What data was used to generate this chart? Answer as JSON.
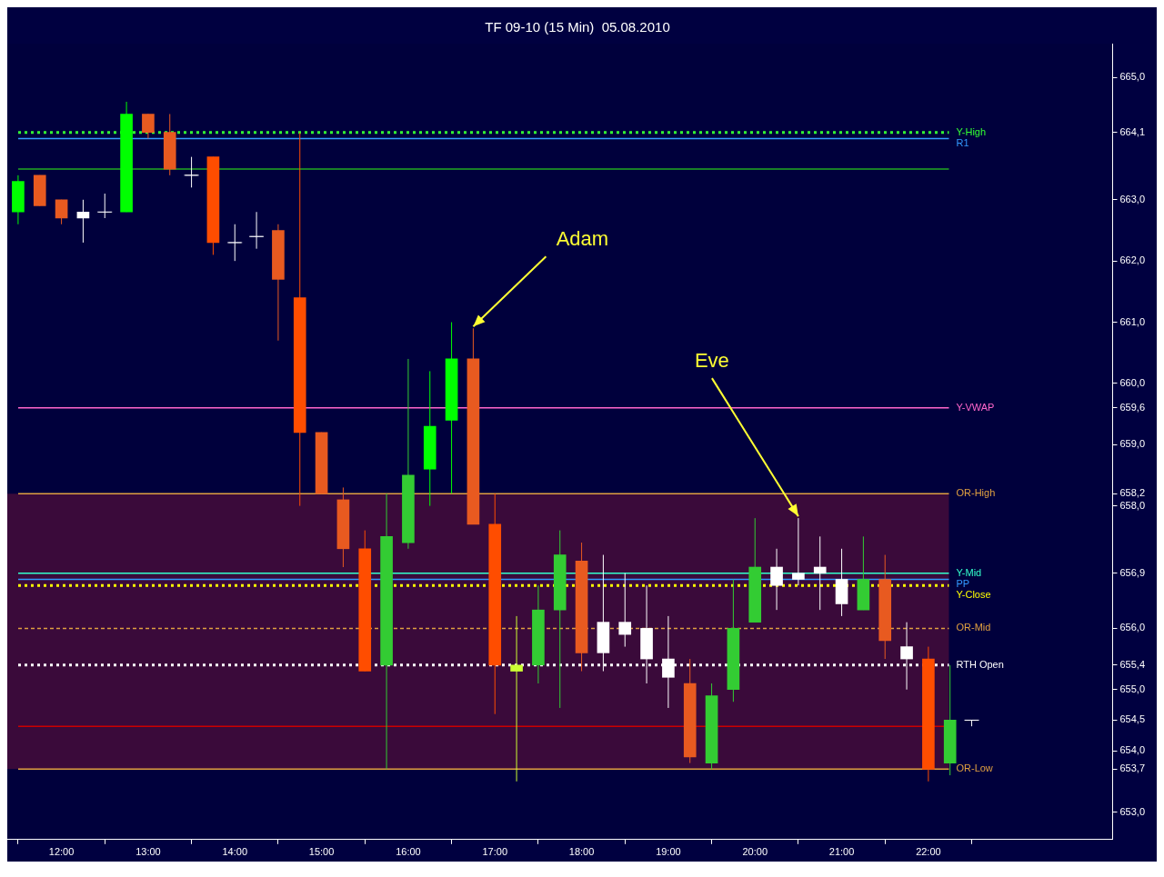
{
  "chart_data": {
    "type": "candlestick",
    "title": "TF 09-10 (15 Min)  05.08.2010",
    "x": [
      11.5,
      11.75,
      12,
      12.25,
      12.5,
      12.75,
      13,
      13.25,
      13.5,
      13.75,
      14,
      14.25,
      14.5,
      14.75,
      15,
      15.25,
      15.5,
      15.75,
      16,
      16.25,
      16.5,
      16.75,
      17,
      17.25,
      17.5,
      17.75,
      18,
      18.25,
      18.5,
      18.75,
      19,
      19.25,
      19.5,
      19.75,
      20,
      20.25,
      20.5,
      20.75,
      21,
      21.25,
      21.5,
      21.75,
      22,
      22.25,
      22.5
    ],
    "ohlc": [
      [
        662.8,
        663.4,
        662.6,
        663.3
      ],
      [
        663.4,
        663.4,
        662.9,
        662.9
      ],
      [
        663.0,
        663.0,
        662.6,
        662.7
      ],
      [
        662.8,
        663.0,
        662.3,
        662.7
      ],
      [
        662.8,
        663.1,
        662.7,
        662.8
      ],
      [
        662.8,
        664.6,
        662.8,
        664.4
      ],
      [
        664.4,
        664.4,
        664.0,
        664.1
      ],
      [
        664.1,
        664.4,
        663.4,
        663.5
      ],
      [
        663.4,
        663.7,
        663.2,
        663.4
      ],
      [
        663.7,
        663.7,
        662.1,
        662.3
      ],
      [
        662.3,
        662.6,
        662.0,
        662.3
      ],
      [
        662.4,
        662.8,
        662.2,
        662.4
      ],
      [
        662.5,
        662.6,
        660.7,
        661.7
      ],
      [
        661.4,
        664.1,
        658.0,
        659.2
      ],
      [
        659.2,
        659.2,
        658.2,
        658.2
      ],
      [
        658.1,
        658.3,
        657.0,
        657.3
      ],
      [
        657.3,
        657.6,
        655.3,
        655.3
      ],
      [
        655.4,
        658.2,
        653.7,
        657.5
      ],
      [
        657.4,
        660.4,
        657.3,
        658.5
      ],
      [
        658.6,
        660.2,
        658.0,
        659.3
      ],
      [
        659.4,
        661.0,
        658.2,
        660.4
      ],
      [
        660.4,
        660.9,
        657.7,
        657.7
      ],
      [
        657.7,
        658.2,
        654.6,
        655.4
      ],
      [
        655.3,
        656.2,
        653.5,
        655.4
      ],
      [
        655.4,
        656.7,
        655.1,
        656.3
      ],
      [
        656.3,
        657.6,
        654.7,
        657.2
      ],
      [
        657.1,
        657.4,
        655.3,
        655.6
      ],
      [
        655.6,
        657.2,
        655.3,
        656.1
      ],
      [
        656.1,
        656.9,
        655.7,
        655.9
      ],
      [
        656.0,
        656.7,
        655.1,
        655.5
      ],
      [
        655.5,
        656.2,
        654.7,
        655.2
      ],
      [
        655.1,
        655.5,
        653.8,
        653.9
      ],
      [
        653.8,
        655.1,
        653.7,
        654.9
      ],
      [
        655.0,
        656.8,
        654.8,
        656.0
      ],
      [
        656.1,
        657.8,
        656.1,
        657.0
      ],
      [
        657.0,
        657.3,
        656.3,
        656.7
      ],
      [
        656.8,
        657.8,
        656.7,
        656.9
      ],
      [
        657.0,
        657.5,
        656.3,
        656.9
      ],
      [
        656.8,
        657.3,
        656.2,
        656.4
      ],
      [
        656.3,
        657.5,
        656.3,
        656.8
      ],
      [
        656.8,
        657.2,
        655.5,
        655.8
      ],
      [
        655.7,
        656.1,
        655.0,
        655.5
      ],
      [
        655.5,
        655.7,
        653.5,
        653.7
      ],
      [
        653.8,
        655.4,
        653.6,
        654.5
      ],
      [
        654.5,
        654.5,
        654.4,
        654.5
      ]
    ],
    "colors": [
      "#00ff00",
      "#e85a20",
      "#e85a20",
      "#ffffff",
      "#ffffff",
      "#00ff00",
      "#e85a20",
      "#e85a20",
      "#ffffff",
      "#ff4d00",
      "#ffffff",
      "#ffffff",
      "#e85a20",
      "#ff4d00",
      "#e85a20",
      "#e85a20",
      "#ff4d00",
      "#33cc33",
      "#33cc33",
      "#00ff00",
      "#00ff00",
      "#e85a20",
      "#ff4d00",
      "#ccff33",
      "#33cc33",
      "#33cc33",
      "#e85a20",
      "#ffffff",
      "#ffffff",
      "#ffffff",
      "#ffffff",
      "#e85a20",
      "#33cc33",
      "#33cc33",
      "#33cc33",
      "#ffffff",
      "#ffffff",
      "#ffffff",
      "#ffffff",
      "#33cc33",
      "#e85a20",
      "#ffffff",
      "#ff4d00",
      "#33cc33",
      "#ffffff"
    ],
    "xlim": [
      11.375,
      24.125
    ],
    "xticks": [
      {
        "value": 12,
        "label": "12:00"
      },
      {
        "value": 13,
        "label": "13:00"
      },
      {
        "value": 14,
        "label": "14:00"
      },
      {
        "value": 15,
        "label": "15:00"
      },
      {
        "value": 16,
        "label": "16:00"
      },
      {
        "value": 17,
        "label": "17:00"
      },
      {
        "value": 18,
        "label": "18:00"
      },
      {
        "value": 19,
        "label": "19:00"
      },
      {
        "value": 20,
        "label": "20:00"
      },
      {
        "value": 21,
        "label": "21:00"
      },
      {
        "value": 22,
        "label": "22:00"
      }
    ],
    "ylim": [
      652.55,
      665.55
    ],
    "yticks": [
      {
        "value": 653,
        "label": "653,0"
      },
      {
        "value": 653.7,
        "label": "653,7"
      },
      {
        "value": 654,
        "label": "654,0"
      },
      {
        "value": 654.5,
        "label": "654,5"
      },
      {
        "value": 655,
        "label": "655,0"
      },
      {
        "value": 655.4,
        "label": "655,4"
      },
      {
        "value": 656,
        "label": "656,0"
      },
      {
        "value": 656.9,
        "label": "656,9"
      },
      {
        "value": 658,
        "label": "658,0"
      },
      {
        "value": 658.2,
        "label": "658,2"
      },
      {
        "value": 659,
        "label": "659,0"
      },
      {
        "value": 659.6,
        "label": "659,6"
      },
      {
        "value": 660,
        "label": "660,0"
      },
      {
        "value": 661,
        "label": "661,0"
      },
      {
        "value": 662,
        "label": "662,0"
      },
      {
        "value": 663,
        "label": "663,0"
      },
      {
        "value": 664.1,
        "label": "664,1"
      },
      {
        "value": 665,
        "label": "665,0"
      }
    ],
    "ref_lines": [
      {
        "axis": "y",
        "value": 664.1,
        "label": "Y-High",
        "color": "#33ff33",
        "line_style": "dotted"
      },
      {
        "axis": "y",
        "value": 664.0,
        "label": "R1",
        "color": "#3399ff"
      },
      {
        "axis": "y",
        "value": 663.5,
        "color": "#22aa22"
      },
      {
        "axis": "y",
        "value": 659.6,
        "label": "Y-VWAP",
        "color": "#ff66cc"
      },
      {
        "axis": "y",
        "value": 658.2,
        "label": "OR-High",
        "color": "#e0a040"
      },
      {
        "axis": "y",
        "value": 656.9,
        "label": "Y-Mid",
        "color": "#33ffcc"
      },
      {
        "axis": "y",
        "value": 656.8,
        "label": "PP",
        "color": "#3399ff"
      },
      {
        "axis": "y",
        "value": 656.7,
        "label": "Y-Close",
        "color": "#ffff00",
        "line_style": "dotted"
      },
      {
        "axis": "y",
        "value": 656.0,
        "label": "OR-Mid",
        "color": "#e0a040",
        "line_style": "dashed"
      },
      {
        "axis": "y",
        "value": 655.4,
        "label": "RTH Open",
        "color": "#ffffff",
        "line_style": "dotted"
      },
      {
        "axis": "y",
        "value": 654.4,
        "color": "#cc0000"
      },
      {
        "axis": "y",
        "value": 653.7,
        "label": "OR-Low",
        "color": "#e0a040"
      }
    ],
    "bands": [
      {
        "axis": "y",
        "from": 653.7,
        "to": 658.2,
        "color": "#3a0a3a"
      }
    ],
    "annotations": [
      {
        "text": "Adam",
        "x": 16.75,
        "y": 660.9
      },
      {
        "text": "Eve",
        "x": 20.5,
        "y": 657.8
      }
    ],
    "grid": false,
    "legend": false
  }
}
